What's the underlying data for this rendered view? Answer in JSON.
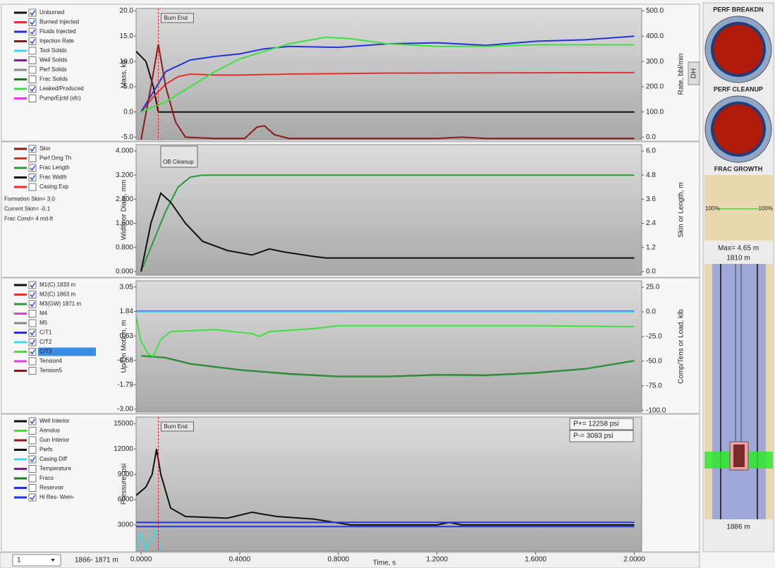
{
  "x_axis": {
    "label": "Time, s",
    "xlim": [
      -0.02,
      2.03
    ],
    "xticks": [
      {
        "value": 0,
        "label": "0.0000"
      },
      {
        "value": 0.4,
        "label": "0.4000"
      },
      {
        "value": 0.8,
        "label": "0.8000"
      },
      {
        "value": 1.2,
        "label": "1.2000"
      },
      {
        "value": 1.6,
        "label": "1.6000"
      },
      {
        "value": 2.0,
        "label": "2.0000"
      }
    ]
  },
  "panels": [
    {
      "ylabel": "Mass, kg",
      "y2label": "Rate, bbl/min",
      "button": "DH",
      "ylim": [
        -5.5,
        20.5
      ],
      "yticks": [
        {
          "value": 20,
          "label": "20.0"
        },
        {
          "value": 15,
          "label": "15.0"
        },
        {
          "value": 10,
          "label": "10.0"
        },
        {
          "value": 5,
          "label": "5.0"
        },
        {
          "value": 0,
          "label": "0.0"
        },
        {
          "value": -5,
          "label": "-5.0"
        }
      ],
      "y2lim": [
        -10,
        510
      ],
      "y2ticks": [
        {
          "value": 500,
          "label": "500.0"
        },
        {
          "value": 400,
          "label": "400.0"
        },
        {
          "value": 300,
          "label": "300.0"
        },
        {
          "value": 200,
          "label": "200.0"
        },
        {
          "value": 100,
          "label": "100.0"
        },
        {
          "value": 0,
          "label": "0.0"
        }
      ],
      "marker_x": 0.07,
      "marker_label": "Burn End",
      "series": [
        {
          "name": "Unburned",
          "color": "#111111",
          "checked": true,
          "x": [
            -0.02,
            0.02,
            0.05,
            0.07,
            2.0
          ],
          "values": [
            12,
            10,
            5,
            0,
            0
          ]
        },
        {
          "name": "Burned Injected",
          "color": "#e53030",
          "checked": true,
          "x": [
            0.0,
            0.05,
            0.1,
            0.15,
            0.2,
            0.3,
            0.4,
            0.6,
            1.0,
            2.0
          ],
          "values": [
            0,
            3,
            5.5,
            7,
            7.5,
            7.3,
            7.3,
            7.5,
            7.7,
            7.8
          ]
        },
        {
          "name": "Fluids Injected",
          "color": "#2234d8",
          "checked": true,
          "x": [
            0.0,
            0.05,
            0.1,
            0.2,
            0.3,
            0.4,
            0.5,
            0.6,
            0.8,
            1.0,
            1.2,
            1.4,
            1.6,
            1.8,
            2.0
          ],
          "values": [
            0,
            4,
            8,
            10.3,
            11,
            11.5,
            12.5,
            13,
            12.8,
            13.5,
            13.7,
            13.2,
            14,
            14.3,
            15
          ]
        },
        {
          "name": "Injection Rate",
          "color": "#8b1a1a",
          "checked": true,
          "axis": "y2",
          "x": [
            0.0,
            0.04,
            0.07,
            0.1,
            0.14,
            0.18,
            0.3,
            0.42,
            0.47,
            0.5,
            0.54,
            0.6,
            1.2,
            1.3,
            1.4,
            2.0
          ],
          "values": [
            -10,
            200,
            368,
            200,
            60,
            0,
            -5,
            -5,
            40,
            45,
            10,
            -5,
            -5,
            0,
            -5,
            -5
          ]
        },
        {
          "name": "Tool Solids",
          "color": "#3fd8e8",
          "checked": false
        },
        {
          "name": "Well Solids",
          "color": "#7a1f8f",
          "checked": false
        },
        {
          "name": "Perf Solids",
          "color": "#888888",
          "checked": false
        },
        {
          "name": "Frac Solids",
          "color": "#1f7a1f",
          "checked": false
        },
        {
          "name": "Leaked/Produced",
          "color": "#3ee23e",
          "checked": true,
          "x": [
            0.0,
            0.1,
            0.2,
            0.3,
            0.4,
            0.5,
            0.6,
            0.75,
            0.85,
            1.0,
            1.2,
            1.4,
            1.6,
            2.0
          ],
          "values": [
            0,
            2,
            5,
            8,
            10.5,
            12,
            13.5,
            14.8,
            14.5,
            13.5,
            13,
            13,
            13.3,
            13.3
          ]
        },
        {
          "name": "Pump/Ejctd (sfc)",
          "color": "#e03ee0",
          "checked": false
        }
      ]
    },
    {
      "ylabel": "Width or Diam, mm",
      "y2label": "Skin or Length, m",
      "annotation": "OB Cleanup",
      "notes": [
        "Formation Skin= 3.0",
        "Current Skin= -0.1",
        "Frac Cond= 4 md-ft"
      ],
      "ylim": [
        -0.12,
        4.21
      ],
      "yticks": [
        {
          "value": 4,
          "label": "4.000"
        },
        {
          "value": 3.2,
          "label": "3.200"
        },
        {
          "value": 2.4,
          "label": "2.400"
        },
        {
          "value": 1.6,
          "label": "1.600"
        },
        {
          "value": 0.8,
          "label": "0.800"
        },
        {
          "value": 0,
          "label": "0.000"
        }
      ],
      "y2lim": [
        -0.18,
        6.315
      ],
      "y2ticks": [
        {
          "value": 6,
          "label": "6.0"
        },
        {
          "value": 4.8,
          "label": "4.8"
        },
        {
          "value": 3.6,
          "label": "3.6"
        },
        {
          "value": 2.4,
          "label": "2.4"
        },
        {
          "value": 1.2,
          "label": "1.2"
        },
        {
          "value": 0,
          "label": "0.0"
        }
      ],
      "series": [
        {
          "name": "Skin",
          "color": "#8b1a1a",
          "checked": true
        },
        {
          "name": "Perf Dmg Th",
          "color": "#e53030",
          "checked": false
        },
        {
          "name": "Frac Length",
          "color": "#2a9a3a",
          "checked": true,
          "axis": "y2",
          "x": [
            0.0,
            0.05,
            0.1,
            0.15,
            0.2,
            0.25,
            2.0
          ],
          "values": [
            0,
            1.5,
            3,
            4.2,
            4.7,
            4.8,
            4.8
          ]
        },
        {
          "name": "Frac Width",
          "color": "#111111",
          "checked": true,
          "x": [
            0.0,
            0.04,
            0.08,
            0.12,
            0.18,
            0.25,
            0.35,
            0.45,
            0.52,
            0.58,
            0.7,
            0.75,
            2.0
          ],
          "values": [
            0,
            1.6,
            2.6,
            2.3,
            1.6,
            1.0,
            0.7,
            0.55,
            0.75,
            0.65,
            0.5,
            0.45,
            0.45
          ]
        },
        {
          "name": "Casing Exp",
          "color": "#e53030",
          "checked": false
        }
      ]
    },
    {
      "ylabel": "Up/Dn Motion, m",
      "y2label": "Comp/Tens or Load, klb",
      "ylim": [
        -3.14,
        3.36
      ],
      "yticks": [
        3.05,
        1.84,
        0.63,
        -0.58,
        -1.79,
        {
          "value": -3,
          "label": "-3.00"
        }
      ],
      "y2lim": [
        -101.6,
        31.5
      ],
      "y2ticks": [
        {
          "value": 25,
          "label": "25.0"
        },
        {
          "value": 0,
          "label": "0.0"
        },
        {
          "value": -25,
          "label": "-25.0"
        },
        {
          "value": -50,
          "label": "-50.0"
        },
        {
          "value": -75,
          "label": "-75.0"
        },
        {
          "value": -100,
          "label": "-100.0"
        }
      ],
      "series": [
        {
          "name": "M1(C)  1833 m",
          "color": "#111111",
          "checked": true,
          "x": [
            0.0,
            0.1,
            0.2,
            0.4,
            0.6,
            0.8,
            1.0,
            1.2,
            1.4,
            1.6,
            1.8,
            2.0
          ],
          "values": [
            -0.35,
            -0.45,
            -0.75,
            -1.05,
            -1.25,
            -1.38,
            -1.38,
            -1.3,
            -1.32,
            -1.2,
            -1.0,
            -0.6
          ]
        },
        {
          "name": "M2(C)  1863 m",
          "color": "#e53030",
          "checked": true
        },
        {
          "name": "M3(GW)  1871 m",
          "color": "#2a9a3a",
          "checked": true,
          "x": [
            0.0,
            0.1,
            0.2,
            0.4,
            0.6,
            0.8,
            1.0,
            1.2,
            1.4,
            1.6,
            1.8,
            2.0
          ],
          "values": [
            -0.36,
            -0.46,
            -0.76,
            -1.06,
            -1.26,
            -1.39,
            -1.39,
            -1.31,
            -1.33,
            -1.21,
            -1.01,
            -0.61
          ]
        },
        {
          "name": "M4",
          "color": "#e03ee0",
          "checked": false
        },
        {
          "name": "M5",
          "color": "#888888",
          "checked": false
        },
        {
          "name": "C/T1",
          "color": "#2234d8",
          "checked": true,
          "axis": "y2",
          "x": [
            -0.02,
            2.0
          ],
          "values": [
            0.5,
            0.5
          ]
        },
        {
          "name": "C/T2",
          "color": "#3fd8e8",
          "checked": true,
          "axis": "y2",
          "x": [
            -0.02,
            2.0
          ],
          "values": [
            0,
            0
          ]
        },
        {
          "name": "C/T3",
          "color": "#3ee23e",
          "checked": true,
          "selected": true,
          "axis": "y2",
          "x": [
            -0.02,
            0.0,
            0.03,
            0.05,
            0.08,
            0.12,
            0.3,
            0.45,
            0.48,
            0.52,
            0.7,
            0.8,
            1.0,
            1.6,
            2.0
          ],
          "values": [
            -5,
            -30,
            -43,
            -45,
            -28,
            -20,
            -18,
            -22,
            -25,
            -20,
            -17,
            -14,
            -14,
            -14,
            -15
          ]
        },
        {
          "name": "Tension4",
          "color": "#e03ee0",
          "checked": false
        },
        {
          "name": "Tension5",
          "color": "#8b1a1a",
          "checked": false
        }
      ]
    },
    {
      "ylabel": "Pressure, psi",
      "ylim": [
        -100,
        15800
      ],
      "yticks": [
        15000,
        12000,
        9000,
        6000,
        3000
      ],
      "marker_x": 0.07,
      "marker_label": "Burn End",
      "readouts": [
        "P+= 12258 psi",
        "P-= 3083 psi"
      ],
      "series": [
        {
          "name": "Well Interior",
          "color": "#111111",
          "checked": true,
          "x": [
            -0.02,
            0.02,
            0.045,
            0.063,
            0.08,
            0.12,
            0.18,
            0.35,
            0.45,
            0.55,
            0.7,
            0.85,
            1.2,
            1.25,
            1.3,
            2.0
          ],
          "values": [
            6500,
            7500,
            9000,
            12000,
            9000,
            5000,
            4000,
            3800,
            4500,
            4000,
            3700,
            3000,
            3000,
            3300,
            3000,
            3000
          ]
        },
        {
          "name": "Annulus",
          "color": "#3ee23e",
          "checked": false
        },
        {
          "name": "Gun Interior",
          "color": "#8b1a1a",
          "checked": false
        },
        {
          "name": "Perfs",
          "color": "#111111",
          "checked": false
        },
        {
          "name": "Casing Diff",
          "color": "#3fd8e8",
          "checked": true,
          "x": [
            -0.02,
            0.0,
            0.02,
            0.06,
            0.08
          ],
          "values": [
            0,
            2000,
            0,
            2500,
            0
          ]
        },
        {
          "name": "Temperature",
          "color": "#7a1f8f",
          "checked": false
        },
        {
          "name": "Fracs",
          "color": "#1f7a1f",
          "checked": false
        },
        {
          "name": "Reservoir",
          "color": "#2234d8",
          "checked": false,
          "x": [
            -0.02,
            2.0
          ],
          "values": [
            3300,
            3300
          ]
        },
        {
          "name": "Hi Res- Wein-",
          "color": "#2234d8",
          "checked": true,
          "x": [
            -0.02,
            2.0
          ],
          "values": [
            2800,
            2800
          ]
        }
      ]
    }
  ],
  "status_bar": {
    "selector": "1",
    "depth_range": "1866- 1871 m"
  },
  "side_panel": {
    "perf_breakdn": "PERF BREAKDN",
    "perf_cleanup": "PERF CLEANUP",
    "frac_growth": "FRAC GROWTH",
    "growth_left": "100%",
    "growth_right": "100%",
    "max": "Max= 4.65 m",
    "top_depth": "1810 m",
    "bottom_depth": "1886 m"
  }
}
